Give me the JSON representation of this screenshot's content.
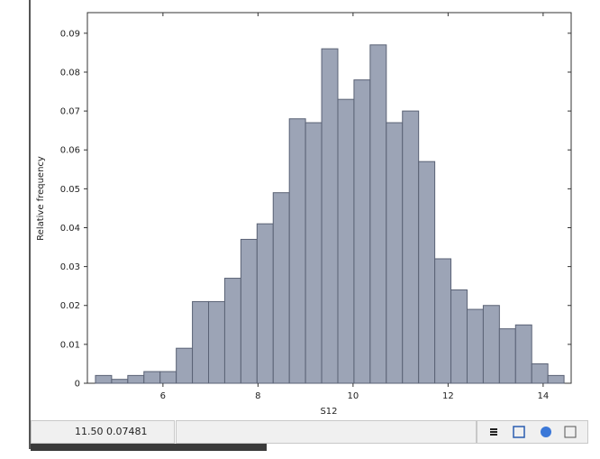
{
  "chart_data": {
    "type": "histogram",
    "xlabel": "S12",
    "ylabel": "Relative frequency",
    "bins": [
      4.58,
      4.92,
      5.26,
      5.6,
      5.94,
      6.28,
      6.62,
      6.96,
      7.3,
      7.64,
      7.98,
      8.32,
      8.66,
      9.0,
      9.34,
      9.68,
      10.02,
      10.36,
      10.7,
      11.04,
      11.38,
      11.72,
      12.06,
      12.4,
      12.74,
      13.08,
      13.42,
      13.76,
      14.1,
      14.44
    ],
    "values": [
      0.002,
      0.001,
      0.002,
      0.003,
      0.003,
      0.009,
      0.021,
      0.021,
      0.027,
      0.037,
      0.041,
      0.049,
      0.068,
      0.067,
      0.086,
      0.073,
      0.078,
      0.087,
      0.067,
      0.07,
      0.057,
      0.032,
      0.024,
      0.019,
      0.02,
      0.014,
      0.015,
      0.005,
      0.002
    ],
    "color": "#9ca4b6",
    "xlim": [
      4.41,
      14.59
    ],
    "xticks": [
      6,
      8,
      10,
      12,
      14
    ],
    "ylim": [
      0,
      0.0953
    ],
    "yticks": [
      0,
      0.01,
      0.02,
      0.03,
      0.04,
      0.05,
      0.06,
      0.07,
      0.08,
      0.09
    ]
  },
  "ui": {
    "status": "11.50 0.07481"
  }
}
